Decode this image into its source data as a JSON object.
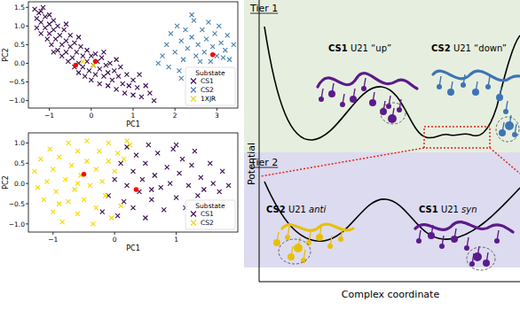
{
  "chart_data": [
    {
      "type": "scatter",
      "xlabel": "PC1",
      "ylabel": "PC2",
      "xlim": [
        -1.5,
        3.5
      ],
      "ylim": [
        -1.2,
        1.65
      ],
      "xticks": [
        {
          "value": -1,
          "label": "−1"
        },
        0,
        1,
        2,
        3
      ],
      "yticks": [
        {
          "value": -1,
          "label": "−1.0"
        },
        {
          "value": -0.5,
          "label": "−0.5"
        },
        {
          "value": 0,
          "label": "0.0"
        },
        {
          "value": 0.5,
          "label": "0.5"
        },
        {
          "value": 1,
          "label": "1.0"
        },
        {
          "value": 1.5,
          "label": "1.5"
        }
      ],
      "legend": "lower right",
      "legend_title": "Substate",
      "series": [
        {
          "name": "CS1",
          "color": "#3a0c4e",
          "marker": "x",
          "x": [
            -1.35,
            -1.3,
            -1.3,
            -1.25,
            -1.2,
            -1.2,
            -1.15,
            -1.1,
            -1.1,
            -1.05,
            -1.0,
            -1.0,
            -1.0,
            -0.95,
            -0.9,
            -0.9,
            -0.85,
            -0.8,
            -0.8,
            -0.75,
            -0.7,
            -0.7,
            -0.65,
            -0.6,
            -0.6,
            -0.55,
            -0.5,
            -0.5,
            -0.45,
            -0.4,
            -0.4,
            -0.35,
            -0.3,
            -0.3,
            -0.25,
            -0.2,
            -0.2,
            -0.15,
            -0.1,
            -0.1,
            -0.05,
            0.0,
            0.0,
            0.05,
            0.1,
            0.1,
            0.15,
            0.2,
            0.2,
            0.25,
            0.3,
            0.35,
            0.4,
            0.4,
            0.45,
            0.5,
            0.55,
            0.6,
            0.65,
            0.7,
            0.75,
            0.8,
            0.85,
            0.9,
            1.0,
            1.0,
            1.1,
            1.15,
            1.2,
            1.3,
            1.4,
            1.5,
            -0.9,
            -0.6,
            -1.2,
            0.3,
            0.6,
            -0.3
          ],
          "values": [
            1.45,
            1.2,
            0.95,
            1.35,
            1.1,
            0.8,
            1.5,
            1.25,
            0.95,
            0.65,
            1.3,
            1.05,
            0.8,
            0.5,
            1.15,
            0.9,
            0.65,
            0.35,
            1.0,
            0.75,
            0.5,
            0.2,
            0.9,
            0.6,
            0.3,
            0.05,
            0.75,
            0.45,
            0.15,
            -0.1,
            0.55,
            0.3,
            0.0,
            -0.25,
            0.45,
            0.2,
            -0.1,
            -0.35,
            0.35,
            0.05,
            -0.2,
            0.2,
            -0.45,
            -0.05,
            0.25,
            -0.3,
            0.05,
            -0.15,
            -0.55,
            0.15,
            -0.35,
            -0.05,
            -0.6,
            -0.25,
            0.0,
            -0.45,
            -0.2,
            -0.7,
            -0.35,
            -0.1,
            -0.55,
            -0.8,
            -0.3,
            -0.6,
            -0.45,
            -0.85,
            -0.65,
            -0.3,
            -0.9,
            -0.6,
            -0.8,
            -1.0,
            0.3,
            1.05,
            1.4,
            0.3,
            0.1,
            0.7
          ]
        },
        {
          "name": "CS2",
          "color": "#4c82ad",
          "marker": "x",
          "x": [
            1.7,
            1.8,
            1.85,
            1.9,
            2.0,
            2.05,
            2.1,
            2.15,
            2.2,
            2.25,
            2.3,
            2.4,
            2.45,
            2.5,
            2.55,
            2.6,
            2.65,
            2.7,
            2.75,
            2.8,
            2.85,
            2.9,
            2.95,
            3.0,
            3.05,
            3.1,
            3.15,
            3.2,
            3.25,
            3.3,
            3.4,
            2.4,
            2.15,
            1.6
          ],
          "values": [
            0.2,
            0.5,
            -0.1,
            0.8,
            0.3,
            1.0,
            -0.2,
            0.6,
            0.1,
            0.9,
            0.4,
            0.7,
            1.15,
            0.2,
            0.5,
            0.05,
            0.9,
            0.3,
            0.65,
            1.1,
            0.05,
            0.45,
            0.8,
            0.2,
            1.0,
            0.55,
            0.15,
            0.35,
            0.75,
            0.1,
            0.5,
            1.3,
            -0.4,
            0.0
          ]
        },
        {
          "name": "1XJR",
          "color": "#f2d600",
          "marker": "x",
          "x": [
            -0.2,
            0.05
          ],
          "values": [
            0.05,
            -0.05
          ]
        },
        {
          "color": "#ff0000",
          "marker": "o",
          "x": [
            -0.37,
            0.1,
            2.9
          ],
          "values": [
            -0.05,
            0.05,
            0.23
          ]
        }
      ]
    },
    {
      "type": "scatter",
      "xlabel": "PC1",
      "ylabel": "PC2",
      "xlim": [
        -1.4,
        2.0
      ],
      "ylim": [
        -1.2,
        1.25
      ],
      "xticks": [
        {
          "value": -1,
          "label": "−1"
        },
        0,
        1
      ],
      "yticks": [
        {
          "value": -1,
          "label": "−1.0"
        },
        {
          "value": -0.5,
          "label": "−0.5"
        },
        {
          "value": 0,
          "label": "0.0"
        },
        {
          "value": 0.5,
          "label": "0.5"
        },
        {
          "value": 1,
          "label": "1.0"
        }
      ],
      "legend": "lower right",
      "legend_title": "Substate",
      "series": [
        {
          "name": "CS1",
          "color": "#3a0c4e",
          "marker": "x",
          "x": [
            -0.2,
            -0.1,
            0.0,
            0.05,
            0.1,
            0.15,
            0.2,
            0.2,
            0.3,
            0.3,
            0.35,
            0.4,
            0.45,
            0.5,
            0.5,
            0.55,
            0.6,
            0.65,
            0.7,
            0.75,
            0.8,
            0.85,
            0.9,
            0.95,
            1.0,
            1.05,
            1.1,
            1.15,
            1.2,
            1.25,
            1.3,
            1.35,
            1.4,
            1.45,
            1.55,
            1.6,
            1.7,
            1.75,
            1.85,
            0.6,
            1.0
          ],
          "values": [
            -0.7,
            -0.3,
            0.1,
            -0.8,
            0.5,
            -0.45,
            0.9,
            -0.05,
            0.3,
            -0.6,
            0.7,
            -0.2,
            0.1,
            -0.85,
            0.5,
            0.95,
            -0.4,
            0.2,
            0.75,
            -0.1,
            -0.65,
            0.4,
            0.0,
            0.85,
            -0.35,
            0.25,
            0.6,
            -0.6,
            -0.05,
            0.45,
            0.8,
            -0.3,
            0.15,
            -0.15,
            0.5,
            0.0,
            -0.2,
            0.3,
            -0.05,
            -0.15,
            0.95
          ]
        },
        {
          "name": "CS2",
          "color": "#f5d800",
          "marker": "x",
          "x": [
            -1.3,
            -1.25,
            -1.2,
            -1.15,
            -1.1,
            -1.05,
            -1.0,
            -1.0,
            -0.95,
            -0.9,
            -0.85,
            -0.8,
            -0.75,
            -0.75,
            -0.7,
            -0.65,
            -0.6,
            -0.6,
            -0.55,
            -0.5,
            -0.45,
            -0.45,
            -0.4,
            -0.35,
            -0.3,
            -0.3,
            -0.25,
            -0.2,
            -0.15,
            -0.1,
            -0.1,
            -0.05,
            0.0,
            0.05,
            0.1,
            0.15,
            0.2,
            0.25,
            -0.6,
            -0.9
          ],
          "values": [
            0.3,
            -0.1,
            0.6,
            -0.4,
            0.05,
            0.85,
            -0.7,
            0.35,
            -0.2,
            0.65,
            -0.95,
            0.1,
            1.0,
            -0.45,
            0.45,
            -0.15,
            0.8,
            -0.75,
            0.2,
            -0.4,
            0.55,
            1.05,
            -0.05,
            -1.0,
            0.35,
            -0.6,
            0.8,
            0.05,
            -0.3,
            0.55,
            1.0,
            -0.85,
            0.3,
            0.75,
            -0.55,
            0.6,
            1.05,
            0.95,
            0.0,
            -0.5
          ]
        },
        {
          "color": "#ff0000",
          "marker": "o",
          "x": [
            -0.5,
            0.35
          ],
          "values": [
            0.23,
            -0.15
          ]
        }
      ]
    }
  ],
  "diagram": {
    "y_axis_label": "Potential",
    "x_axis_label": "Complex coordinate",
    "tiers": [
      {
        "label": "Tier 1",
        "states": [
          {
            "name": "CS1",
            "residue": "U21",
            "state": "“up”",
            "color": "#5c1a8c"
          },
          {
            "name": "CS2",
            "residue": "U21",
            "state": "“down”",
            "color": "#3e73b6"
          }
        ]
      },
      {
        "label": "Tier 2",
        "states": [
          {
            "name": "CS2",
            "residue": "U21",
            "state": "anti",
            "color": "#e7c00c"
          },
          {
            "name": "CS1",
            "residue": "U21",
            "state": "syn",
            "color": "#5c1a8c"
          }
        ]
      }
    ]
  }
}
